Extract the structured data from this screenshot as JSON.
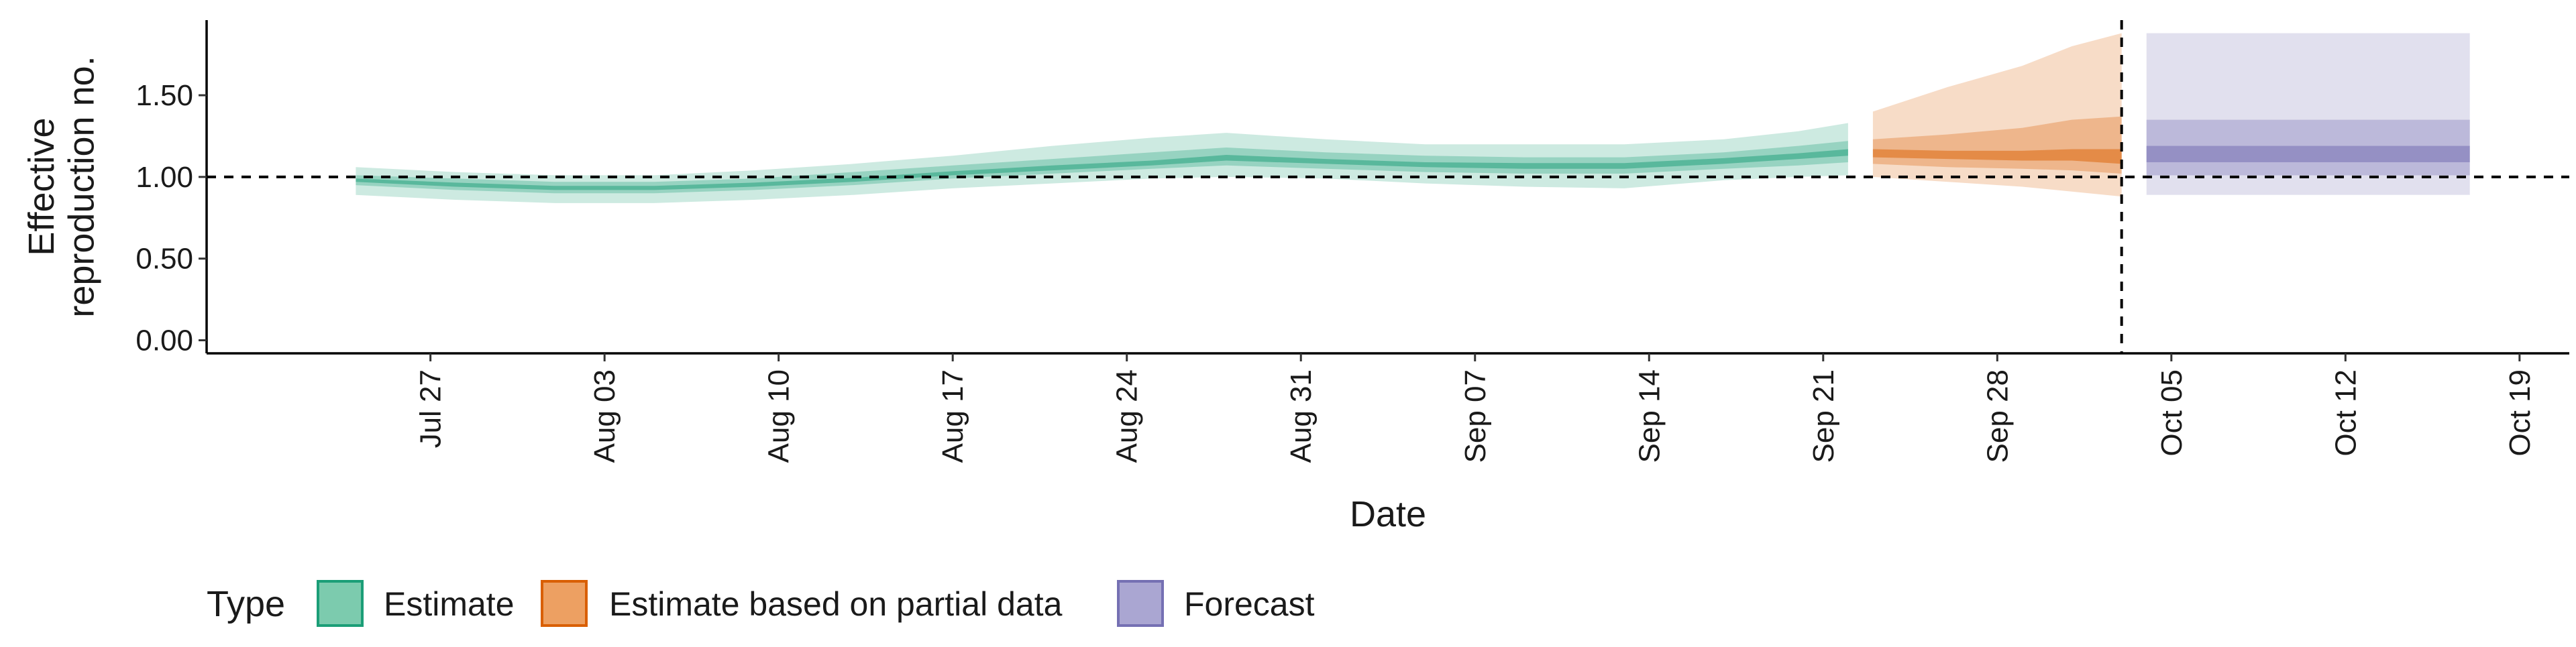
{
  "chart_data": {
    "type": "area",
    "xlabel": "Date",
    "ylabel_lines": [
      "Effective",
      "reproduction no."
    ],
    "ylim": [
      -0.08,
      1.96
    ],
    "y_ticks": [
      0.0,
      0.5,
      1.0,
      1.5
    ],
    "y_tick_labels": [
      "0.00",
      "0.50",
      "1.00",
      "1.50"
    ],
    "xlim": [
      "2020-07-18",
      "2020-10-21"
    ],
    "x_ticks": [
      "2020-07-27",
      "2020-08-03",
      "2020-08-10",
      "2020-08-17",
      "2020-08-24",
      "2020-08-31",
      "2020-09-07",
      "2020-09-14",
      "2020-09-21",
      "2020-09-28",
      "2020-10-05",
      "2020-10-12",
      "2020-10-19"
    ],
    "x_tick_labels": [
      "Jul 27",
      "Aug 03",
      "Aug 10",
      "Aug 17",
      "Aug 24",
      "Aug 31",
      "Sep 07",
      "Sep 14",
      "Sep 21",
      "Sep 28",
      "Oct 05",
      "Oct 12",
      "Oct 19"
    ],
    "reference_line_y": 1.0,
    "reference_line_x": "2020-10-03",
    "legend": {
      "title": "Type",
      "placement": "bottom",
      "items": [
        {
          "label": "Estimate",
          "fill": "#7ccbae",
          "stroke": "#1b9e77"
        },
        {
          "label": "Estimate based on partial data",
          "fill": "#eda062",
          "stroke": "#d95f02"
        },
        {
          "label": "Forecast",
          "fill": "#aaa6d2",
          "stroke": "#7570b3"
        }
      ]
    },
    "series": [
      {
        "name": "Estimate",
        "color": "#1b9e77",
        "points": [
          {
            "date": "2020-07-24",
            "lo90": 0.89,
            "lo50": 0.95,
            "lo20": 0.97,
            "med": 0.98,
            "hi20": 0.99,
            "hi50": 1.01,
            "hi90": 1.06
          },
          {
            "date": "2020-07-28",
            "lo90": 0.86,
            "lo50": 0.92,
            "lo20": 0.94,
            "med": 0.955,
            "hi20": 0.965,
            "hi50": 0.99,
            "hi90": 1.03
          },
          {
            "date": "2020-08-01",
            "lo90": 0.84,
            "lo50": 0.9,
            "lo20": 0.92,
            "med": 0.935,
            "hi20": 0.945,
            "hi50": 0.97,
            "hi90": 1.01
          },
          {
            "date": "2020-08-05",
            "lo90": 0.84,
            "lo50": 0.9,
            "lo20": 0.92,
            "med": 0.935,
            "hi20": 0.945,
            "hi50": 0.97,
            "hi90": 1.01
          },
          {
            "date": "2020-08-09",
            "lo90": 0.86,
            "lo50": 0.92,
            "lo20": 0.94,
            "med": 0.955,
            "hi20": 0.965,
            "hi50": 0.99,
            "hi90": 1.04
          },
          {
            "date": "2020-08-13",
            "lo90": 0.89,
            "lo50": 0.95,
            "lo20": 0.97,
            "med": 0.985,
            "hi20": 0.995,
            "hi50": 1.03,
            "hi90": 1.08
          },
          {
            "date": "2020-08-17",
            "lo90": 0.93,
            "lo50": 0.99,
            "lo20": 1.01,
            "med": 1.02,
            "hi20": 1.035,
            "hi50": 1.07,
            "hi90": 1.13
          },
          {
            "date": "2020-08-21",
            "lo90": 0.96,
            "lo50": 1.02,
            "lo20": 1.04,
            "med": 1.055,
            "hi20": 1.07,
            "hi50": 1.11,
            "hi90": 1.19
          },
          {
            "date": "2020-08-25",
            "lo90": 0.99,
            "lo50": 1.05,
            "lo20": 1.07,
            "med": 1.085,
            "hi20": 1.1,
            "hi50": 1.15,
            "hi90": 1.24
          },
          {
            "date": "2020-08-28",
            "lo90": 1.0,
            "lo50": 1.07,
            "lo20": 1.1,
            "med": 1.12,
            "hi20": 1.135,
            "hi50": 1.18,
            "hi90": 1.27
          },
          {
            "date": "2020-09-01",
            "lo90": 0.99,
            "lo50": 1.05,
            "lo20": 1.08,
            "med": 1.095,
            "hi20": 1.11,
            "hi50": 1.15,
            "hi90": 1.23
          },
          {
            "date": "2020-09-05",
            "lo90": 0.96,
            "lo50": 1.03,
            "lo20": 1.06,
            "med": 1.075,
            "hi20": 1.09,
            "hi50": 1.13,
            "hi90": 1.2
          },
          {
            "date": "2020-09-09",
            "lo90": 0.94,
            "lo50": 1.02,
            "lo20": 1.05,
            "med": 1.07,
            "hi20": 1.085,
            "hi50": 1.12,
            "hi90": 1.2
          },
          {
            "date": "2020-09-13",
            "lo90": 0.93,
            "lo50": 1.02,
            "lo20": 1.05,
            "med": 1.07,
            "hi20": 1.085,
            "hi50": 1.12,
            "hi90": 1.2
          },
          {
            "date": "2020-09-17",
            "lo90": 0.98,
            "lo50": 1.05,
            "lo20": 1.08,
            "med": 1.1,
            "hi20": 1.115,
            "hi50": 1.15,
            "hi90": 1.23
          },
          {
            "date": "2020-09-20",
            "lo90": 1.0,
            "lo50": 1.07,
            "lo20": 1.11,
            "med": 1.13,
            "hi20": 1.145,
            "hi50": 1.19,
            "hi90": 1.28
          },
          {
            "date": "2020-09-22",
            "lo90": 1.01,
            "lo50": 1.09,
            "lo20": 1.13,
            "med": 1.15,
            "hi20": 1.17,
            "hi50": 1.22,
            "hi90": 1.33
          }
        ]
      },
      {
        "name": "Estimate based on partial data",
        "color": "#d95f02",
        "points": [
          {
            "date": "2020-09-23",
            "lo90": 1.0,
            "lo50": 1.08,
            "lo20": 1.12,
            "med": 1.15,
            "hi20": 1.17,
            "hi50": 1.23,
            "hi90": 1.4
          },
          {
            "date": "2020-09-26",
            "lo90": 0.97,
            "lo50": 1.06,
            "lo20": 1.11,
            "med": 1.14,
            "hi20": 1.16,
            "hi50": 1.26,
            "hi90": 1.55
          },
          {
            "date": "2020-09-29",
            "lo90": 0.94,
            "lo50": 1.05,
            "lo20": 1.1,
            "med": 1.13,
            "hi20": 1.16,
            "hi50": 1.3,
            "hi90": 1.68
          },
          {
            "date": "2020-10-01",
            "lo90": 0.91,
            "lo50": 1.04,
            "lo20": 1.1,
            "med": 1.13,
            "hi20": 1.17,
            "hi50": 1.35,
            "hi90": 1.8
          },
          {
            "date": "2020-10-03",
            "lo90": 0.88,
            "lo50": 1.02,
            "lo20": 1.08,
            "med": 1.12,
            "hi20": 1.17,
            "hi50": 1.37,
            "hi90": 1.88
          }
        ]
      },
      {
        "name": "Forecast",
        "color": "#7570b3",
        "points": [
          {
            "date": "2020-10-04",
            "lo90": 0.89,
            "lo50": 1.01,
            "lo20": 1.09,
            "med": 1.14,
            "hi20": 1.19,
            "hi50": 1.35,
            "hi90": 1.88
          },
          {
            "date": "2020-10-17",
            "lo90": 0.89,
            "lo50": 1.01,
            "lo20": 1.09,
            "med": 1.14,
            "hi20": 1.19,
            "hi50": 1.35,
            "hi90": 1.88
          }
        ]
      }
    ]
  }
}
